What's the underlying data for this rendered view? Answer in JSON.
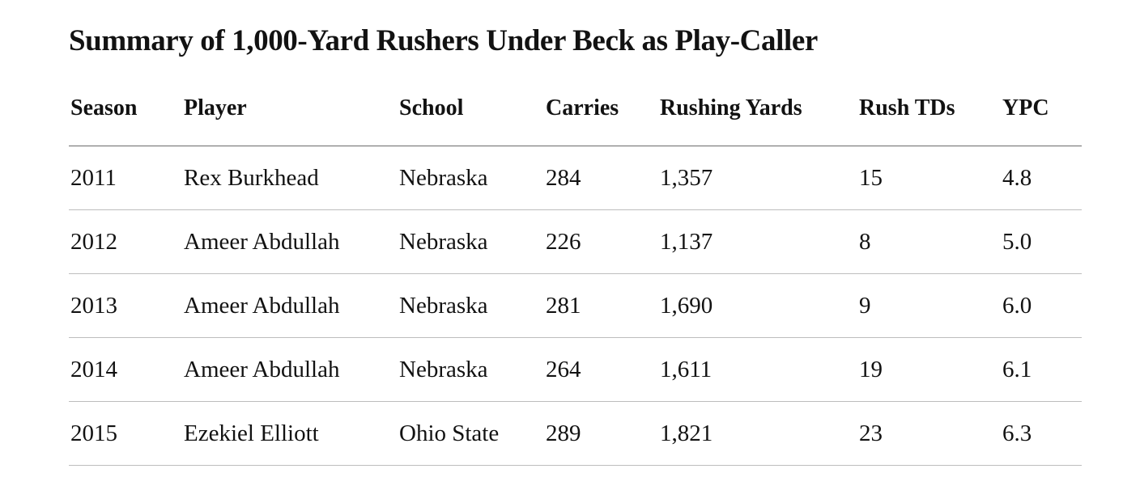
{
  "title": "Summary of 1,000-Yard Rushers Under Beck as Play-Caller",
  "columns": [
    "Season",
    "Player",
    "School",
    "Carries",
    "Rushing Yards",
    "Rush TDs",
    "YPC"
  ],
  "rows": [
    [
      "2011",
      "Rex Burkhead",
      "Nebraska",
      "284",
      "1,357",
      "15",
      "4.8"
    ],
    [
      "2012",
      "Ameer Abdullah",
      "Nebraska",
      "226",
      "1,137",
      "8",
      "5.0"
    ],
    [
      "2013",
      "Ameer Abdullah",
      "Nebraska",
      "281",
      "1,690",
      "9",
      "6.0"
    ],
    [
      "2014",
      "Ameer Abdullah",
      "Nebraska",
      "264",
      "1,611",
      "19",
      "6.1"
    ],
    [
      "2015",
      "Ezekiel Elliott",
      "Ohio State",
      "289",
      "1,821",
      "23",
      "6.3"
    ]
  ],
  "colors": {
    "text": "#121212",
    "header_rule": "#6b6b6b",
    "row_rule": "#bdbdbd",
    "background": "#ffffff"
  }
}
